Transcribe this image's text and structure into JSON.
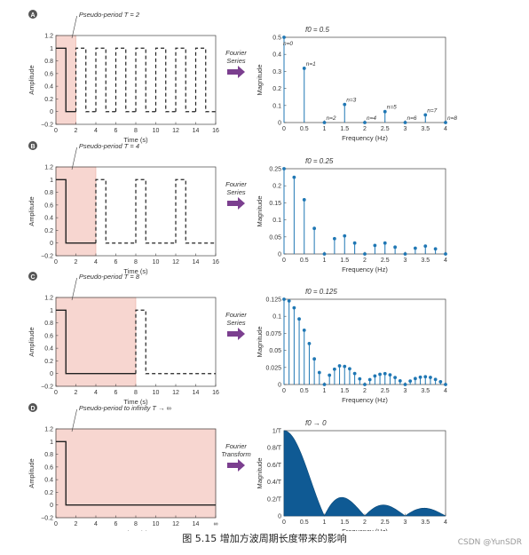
{
  "caption": "图 5.15  增加方波周期长度带来的影响",
  "watermark": "CSDN @YunSDR",
  "colors": {
    "shade": "#f7d6d0",
    "shade_stroke": "#e6aaa0",
    "stem": "#1f77b4",
    "arrow": "#7b3f8f",
    "wave": "#222222"
  },
  "chart_data": [
    {
      "panel": "A",
      "type": "line",
      "annotation": "Pseudo-period  T = 2",
      "xlabel": "Time (s)",
      "ylabel": "Amplitude",
      "xlim": [
        0,
        16
      ],
      "ylim": [
        -0.2,
        1.2
      ],
      "xticks": [
        "0",
        "2",
        "4",
        "6",
        "8",
        "10",
        "12",
        "14",
        "16"
      ],
      "yticks": [
        "−0.2",
        "0",
        "0.2",
        "0.4",
        "0.6",
        "0.8",
        "1",
        "1.2"
      ],
      "period": 2,
      "pulse_width": 1,
      "shaded_to": 2
    },
    {
      "panel": "A",
      "type": "scatter",
      "arrow_label": [
        "Fourier",
        "Series"
      ],
      "title": "f0 = 0.5",
      "xlabel": "Frequency (Hz)",
      "ylabel": "Magnitude",
      "xlim": [
        0,
        4
      ],
      "ylim": [
        0,
        0.5
      ],
      "xticks": [
        "0",
        "0.5",
        "1",
        "1.5",
        "2",
        "2.5",
        "3",
        "3.5",
        "4"
      ],
      "yticks": [
        "0",
        "0.1",
        "0.2",
        "0.3",
        "0.4",
        "0.5"
      ],
      "x": [
        0,
        0.5,
        1,
        1.5,
        2,
        2.5,
        3,
        3.5,
        4
      ],
      "y": [
        0.5,
        0.318,
        0,
        0.106,
        0,
        0.064,
        0,
        0.045,
        0
      ],
      "point_labels": [
        "n=0",
        "n=1",
        "n=2",
        "n=3",
        "n=4",
        "n=5",
        "n=6",
        "n=7",
        "n=8"
      ]
    },
    {
      "panel": "B",
      "type": "line",
      "annotation": "Pseudo-period  T = 4",
      "xlabel": "Time (s)",
      "ylabel": "Amplitude",
      "xlim": [
        0,
        16
      ],
      "ylim": [
        -0.2,
        1.2
      ],
      "xticks": [
        "0",
        "2",
        "4",
        "6",
        "8",
        "10",
        "12",
        "14",
        "16"
      ],
      "yticks": [
        "−0.2",
        "0",
        "0.2",
        "0.4",
        "0.6",
        "0.8",
        "1",
        "1.2"
      ],
      "period": 4,
      "pulse_width": 1,
      "shaded_to": 4
    },
    {
      "panel": "B",
      "type": "scatter",
      "arrow_label": [
        "Fourier",
        "Series"
      ],
      "title": "f0 = 0.25",
      "xlabel": "Frequency (Hz)",
      "ylabel": "Magnitude",
      "xlim": [
        0,
        4
      ],
      "ylim": [
        0,
        0.25
      ],
      "xticks": [
        "0",
        "0.5",
        "1",
        "1.5",
        "2",
        "2.5",
        "3",
        "3.5",
        "4"
      ],
      "yticks": [
        "0",
        "0.05",
        "0.1",
        "0.15",
        "0.2",
        "0.25"
      ],
      "x": [
        0,
        0.25,
        0.5,
        0.75,
        1,
        1.25,
        1.5,
        1.75,
        2,
        2.25,
        2.5,
        2.75,
        3,
        3.25,
        3.5,
        3.75,
        4
      ],
      "y": [
        0.25,
        0.225,
        0.159,
        0.075,
        0,
        0.045,
        0.053,
        0.032,
        0,
        0.025,
        0.032,
        0.02,
        0,
        0.017,
        0.023,
        0.015,
        0
      ]
    },
    {
      "panel": "C",
      "type": "line",
      "annotation": "Pseudo-period  T = 8",
      "xlabel": "Time (s)",
      "ylabel": "Amplitude",
      "xlim": [
        0,
        16
      ],
      "ylim": [
        -0.2,
        1.2
      ],
      "xticks": [
        "0",
        "2",
        "4",
        "6",
        "8",
        "10",
        "12",
        "14",
        "16"
      ],
      "yticks": [
        "−0.2",
        "0",
        "0.2",
        "0.4",
        "0.6",
        "0.8",
        "1",
        "1.2"
      ],
      "period": 8,
      "pulse_width": 1,
      "shaded_to": 8
    },
    {
      "panel": "C",
      "type": "scatter",
      "arrow_label": [
        "Fourier",
        "Series"
      ],
      "title": "f0 = 0.125",
      "xlabel": "Frequency (Hz)",
      "ylabel": "Magnitude",
      "xlim": [
        0,
        4
      ],
      "ylim": [
        0,
        0.125
      ],
      "xticks": [
        "0",
        "0.5",
        "1",
        "1.5",
        "2",
        "2.5",
        "3",
        "3.5",
        "4"
      ],
      "yticks": [
        "0",
        "0.025",
        "0.05",
        "0.075",
        "0.1",
        "0.125"
      ],
      "x": [
        0,
        0.125,
        0.25,
        0.375,
        0.5,
        0.625,
        0.75,
        0.875,
        1,
        1.125,
        1.25,
        1.375,
        1.5,
        1.625,
        1.75,
        1.875,
        2,
        2.125,
        2.25,
        2.375,
        2.5,
        2.625,
        2.75,
        2.875,
        3,
        3.125,
        3.25,
        3.375,
        3.5,
        3.625,
        3.75,
        3.875,
        4
      ],
      "y": [
        0.125,
        0.1225,
        0.1125,
        0.0961,
        0.0796,
        0.0601,
        0.0375,
        0.0175,
        0,
        0.0136,
        0.0225,
        0.0273,
        0.0265,
        0.0231,
        0.0161,
        0.0083,
        0,
        0.0072,
        0.0125,
        0.015,
        0.0159,
        0.0141,
        0.0102,
        0.0054,
        0,
        0.005,
        0.0087,
        0.0107,
        0.0114,
        0.0104,
        0.0075,
        0.004,
        0
      ]
    },
    {
      "panel": "D",
      "type": "line",
      "annotation": "Pseudo-period to infinity  T → ∞",
      "xlabel": "Time (s)",
      "ylabel": "Amplitude",
      "xlim": [
        0,
        16
      ],
      "ylim": [
        -0.2,
        1.2
      ],
      "xticks": [
        "0",
        "2",
        "4",
        "6",
        "8",
        "10",
        "12",
        "14",
        "∞"
      ],
      "yticks": [
        "−0.2",
        "0",
        "0.2",
        "0.4",
        "0.6",
        "0.8",
        "1",
        "1.2"
      ],
      "period": null,
      "pulse_width": 1,
      "shaded_to": 16
    },
    {
      "panel": "D",
      "type": "area",
      "arrow_label": [
        "Fourier",
        "Transform"
      ],
      "title": "f0 → 0",
      "xlabel": "Frequency (Hz)",
      "ylabel": "Magnitude",
      "xlim": [
        0,
        4
      ],
      "ylim": [
        0,
        1
      ],
      "xticks": [
        "0",
        "0.5",
        "1",
        "1.5",
        "2",
        "2.5",
        "3",
        "3.5",
        "4"
      ],
      "yticks": [
        "0",
        "0.2/T",
        "0.4/T",
        "0.6/T",
        "0.8/T",
        "1/T"
      ],
      "function": "|sin(πf)/(πf)| (normalized)"
    }
  ]
}
